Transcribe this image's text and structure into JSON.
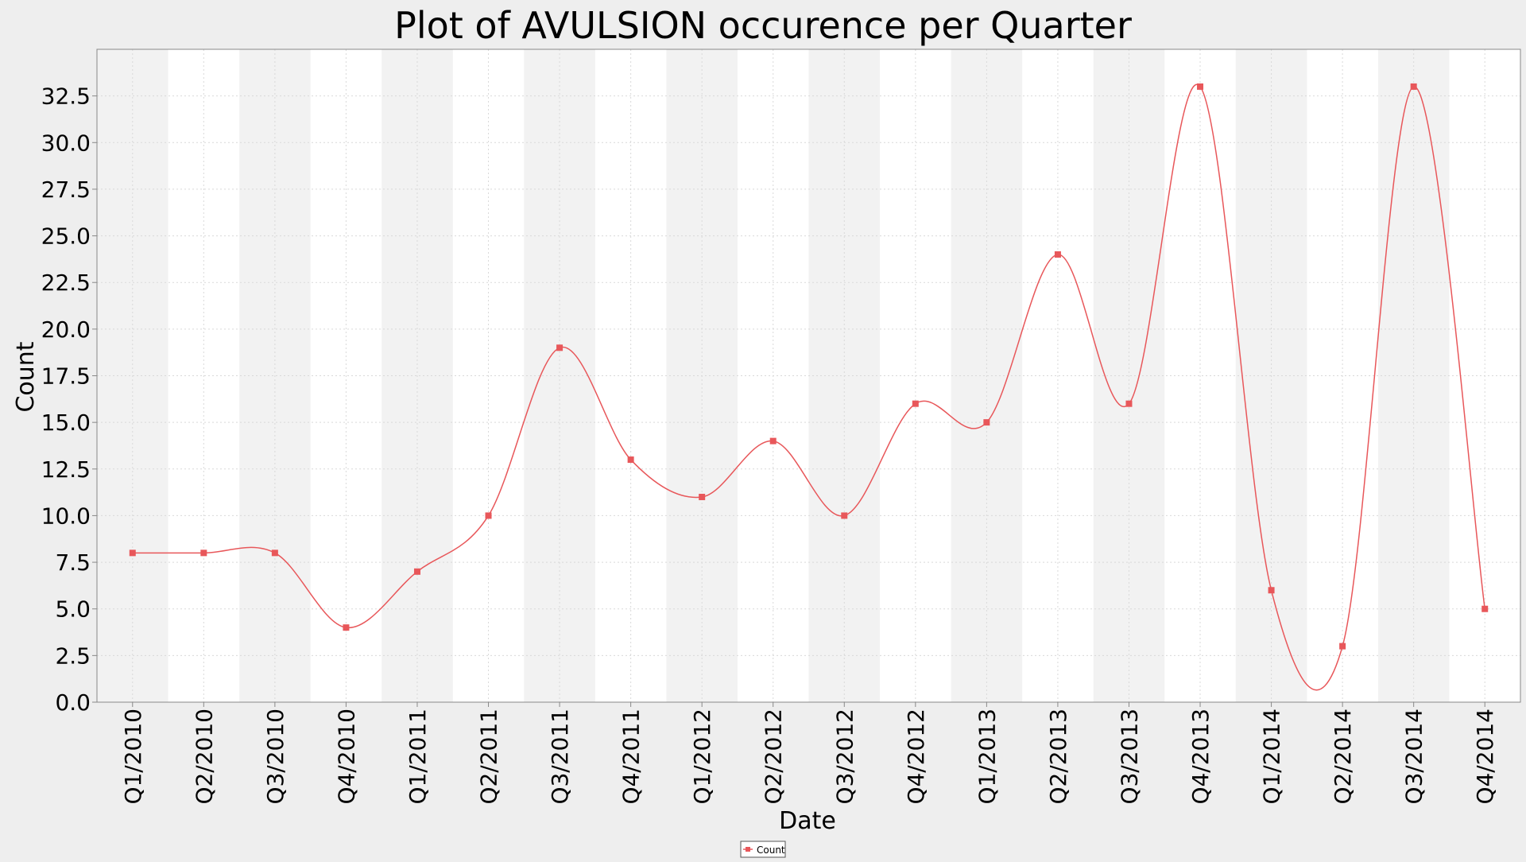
{
  "colors": {
    "background": "#eeeeee",
    "plot_background": "#ffffff",
    "band_shade": "#f2f2f2",
    "gridline": "#d9d9d9",
    "series": "#e8575a",
    "axis": "#888888"
  },
  "chart_data": {
    "type": "line",
    "title": "Plot of AVULSION occurence per Quarter",
    "xlabel": "Date",
    "ylabel": "Count",
    "categories": [
      "Q1/2010",
      "Q2/2010",
      "Q3/2010",
      "Q4/2010",
      "Q1/2011",
      "Q2/2011",
      "Q3/2011",
      "Q4/2011",
      "Q1/2012",
      "Q2/2012",
      "Q3/2012",
      "Q4/2012",
      "Q1/2013",
      "Q2/2013",
      "Q3/2013",
      "Q4/2013",
      "Q1/2014",
      "Q2/2014",
      "Q3/2014",
      "Q4/2014"
    ],
    "series": [
      {
        "name": "Count",
        "values": [
          8,
          8,
          8,
          4,
          7,
          10,
          19,
          13,
          11,
          14,
          10,
          16,
          15,
          24,
          16,
          33,
          6,
          3,
          33,
          5
        ],
        "marker": "square",
        "smoothed": true
      }
    ],
    "ylim": [
      0,
      35
    ],
    "yticks": [
      0.0,
      2.5,
      5.0,
      7.5,
      10.0,
      12.5,
      15.0,
      17.5,
      20.0,
      22.5,
      25.0,
      27.5,
      30.0,
      32.5
    ],
    "grid": true,
    "alternating_bands": true,
    "x_tick_rotation": "vertical",
    "legend": {
      "position": "bottom-center",
      "entries": [
        "Count"
      ]
    }
  }
}
